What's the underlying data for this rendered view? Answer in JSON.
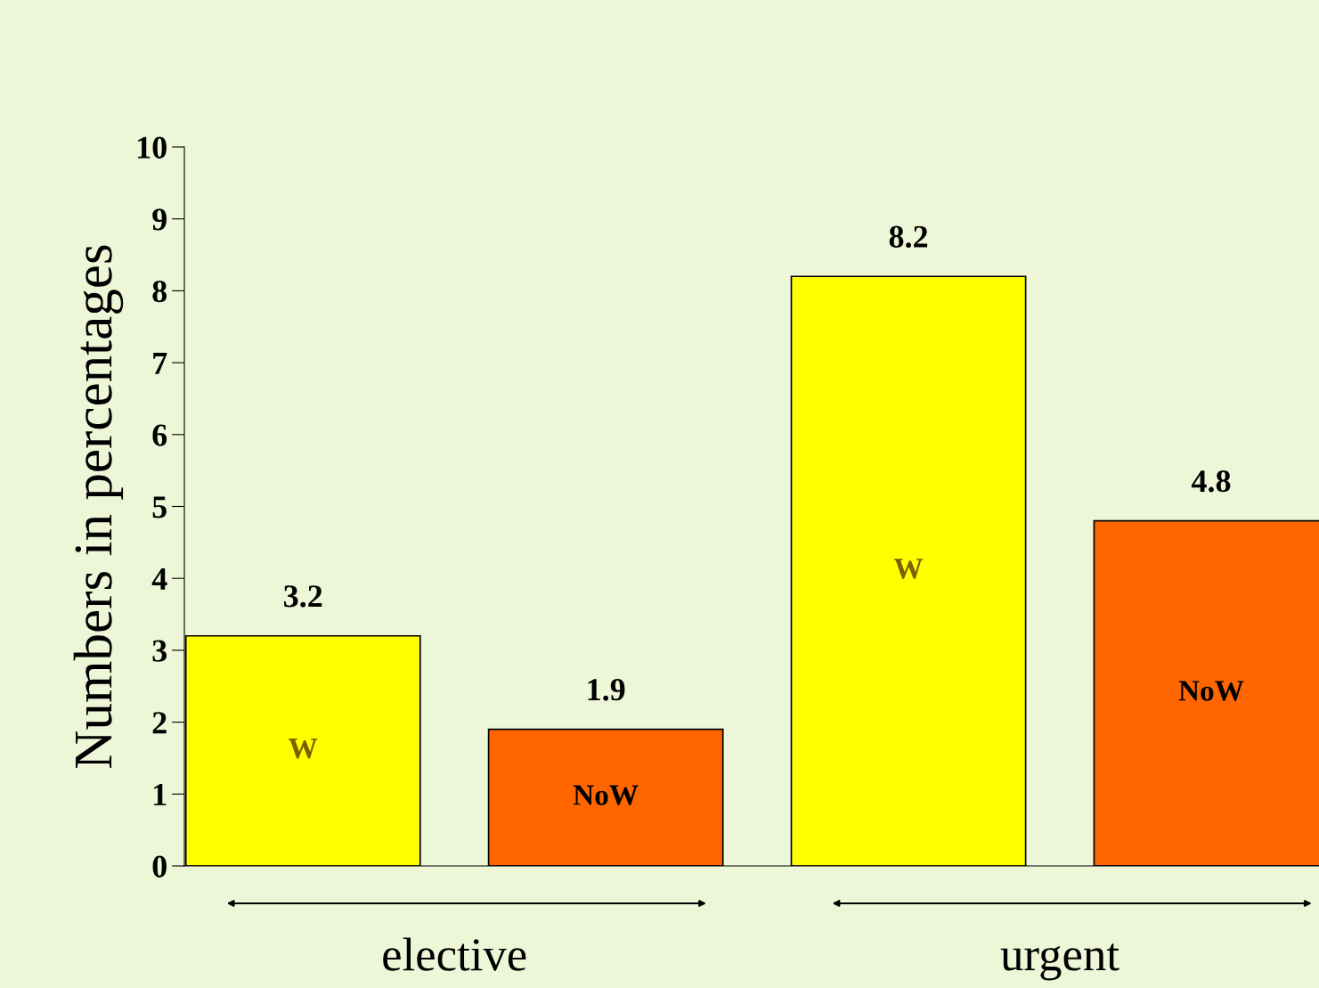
{
  "chart_data": {
    "type": "bar",
    "ylabel": "Numbers in percentages",
    "categories": [
      "elective",
      "urgent"
    ],
    "series": [
      {
        "name": "W",
        "color": "#ffff00",
        "values": [
          3.2,
          8.2
        ]
      },
      {
        "name": "NoW",
        "color": "#ff6600",
        "values": [
          1.9,
          4.8
        ]
      }
    ],
    "data_labels": true,
    "ylim": [
      0,
      10
    ],
    "yticks": [
      0,
      1,
      2,
      3,
      4,
      5,
      6,
      7,
      8,
      9,
      10
    ],
    "grid": false,
    "legend": false
  }
}
